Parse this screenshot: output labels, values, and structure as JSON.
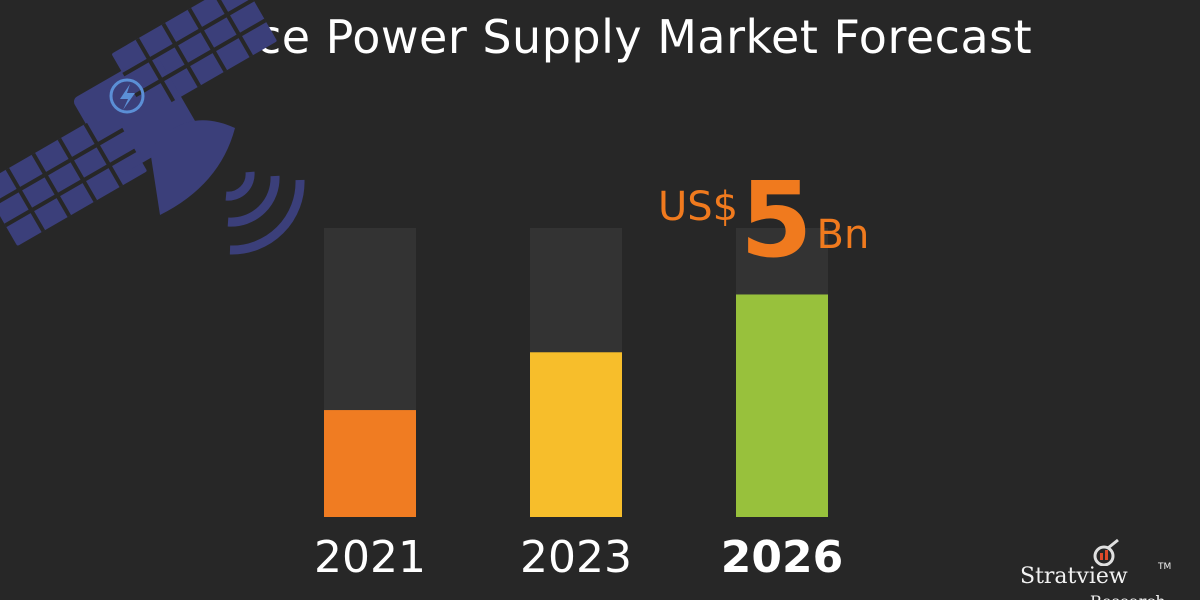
{
  "title": "Space Power Supply Market Forecast",
  "chart_data": {
    "type": "bar",
    "categories": [
      "2021",
      "2023",
      "2026"
    ],
    "values": [
      0.37,
      0.57,
      0.77
    ],
    "value_note": "share of bar track filled",
    "colors": [
      "#f07c22",
      "#f7be2b",
      "#98c13c"
    ],
    "track_color": "#333333",
    "highlight_category": "2026",
    "annotation": {
      "prefix": "US$",
      "value": "5",
      "unit": "Bn",
      "color": "#f07a1e"
    }
  },
  "logo": {
    "name": "Stratview",
    "trademark": "TM",
    "sub": "Research"
  },
  "illustration": {
    "name": "satellite",
    "color": "#3b3f7a",
    "accent": "#5b8fd6"
  }
}
